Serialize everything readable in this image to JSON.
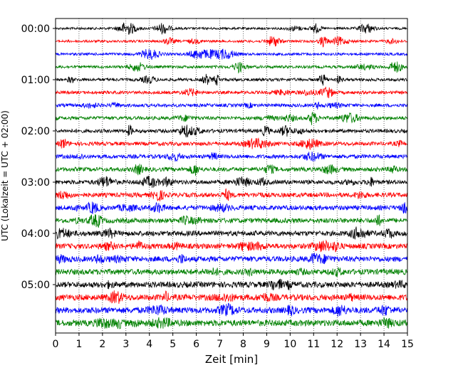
{
  "chart_data": {
    "type": "line",
    "chart_kind": "helicorder (seismogram drum plot)",
    "title": "",
    "xlabel": "Zeit  [min]",
    "ylabel": "UTC (Lokalzeit = UTC + 02:00)",
    "xlim": [
      0,
      15
    ],
    "x_ticks": [
      "0",
      "1",
      "2",
      "3",
      "4",
      "5",
      "6",
      "7",
      "8",
      "9",
      "10",
      "11",
      "12",
      "13",
      "14",
      "15"
    ],
    "y_ticks": [
      "00:00",
      "01:00",
      "02:00",
      "03:00",
      "04:00",
      "05:00"
    ],
    "grid": "vertical dotted at every minute",
    "trace_colors": [
      "#000000",
      "#ff0000",
      "#0000ff",
      "#008000"
    ],
    "traces": [
      {
        "start": "00:00",
        "color": "#000000"
      },
      {
        "start": "00:15",
        "color": "#ff0000"
      },
      {
        "start": "00:30",
        "color": "#0000ff"
      },
      {
        "start": "00:45",
        "color": "#008000"
      },
      {
        "start": "01:00",
        "color": "#000000"
      },
      {
        "start": "01:15",
        "color": "#ff0000"
      },
      {
        "start": "01:30",
        "color": "#0000ff"
      },
      {
        "start": "01:45",
        "color": "#008000"
      },
      {
        "start": "02:00",
        "color": "#000000"
      },
      {
        "start": "02:15",
        "color": "#ff0000"
      },
      {
        "start": "02:30",
        "color": "#0000ff"
      },
      {
        "start": "02:45",
        "color": "#008000"
      },
      {
        "start": "03:00",
        "color": "#000000"
      },
      {
        "start": "03:15",
        "color": "#ff0000"
      },
      {
        "start": "03:30",
        "color": "#0000ff"
      },
      {
        "start": "03:45",
        "color": "#008000"
      },
      {
        "start": "04:00",
        "color": "#000000"
      },
      {
        "start": "04:15",
        "color": "#ff0000"
      },
      {
        "start": "04:30",
        "color": "#0000ff"
      },
      {
        "start": "04:45",
        "color": "#008000"
      },
      {
        "start": "05:00",
        "color": "#000000"
      },
      {
        "start": "05:15",
        "color": "#ff0000"
      },
      {
        "start": "05:30",
        "color": "#0000ff"
      },
      {
        "start": "05:45",
        "color": "#008000"
      }
    ]
  }
}
